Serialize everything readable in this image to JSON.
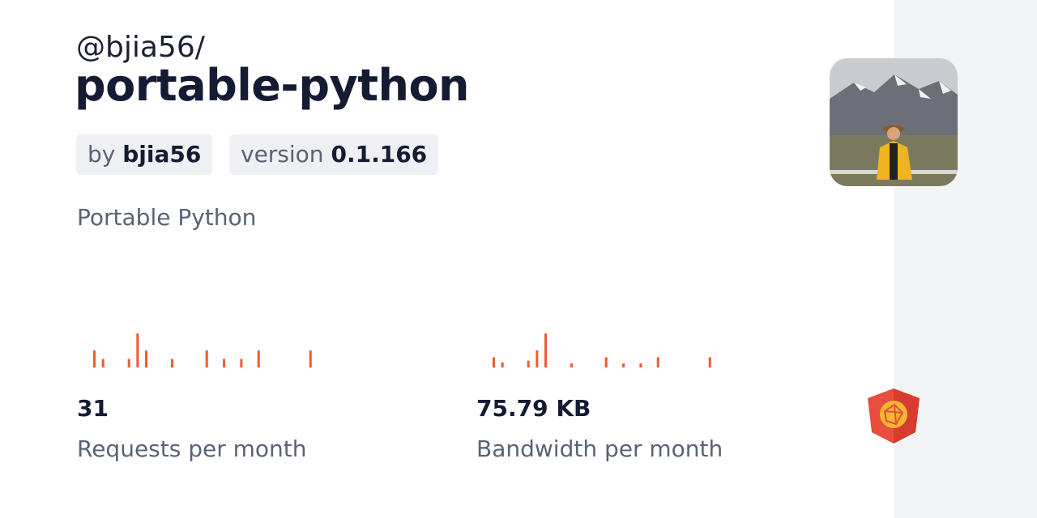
{
  "header": {
    "scope": "@bjia56/",
    "name": "portable-python"
  },
  "badges": {
    "by_label": "by",
    "author": "bjia56",
    "version_label": "version",
    "version": "0.1.166"
  },
  "description": "Portable Python",
  "sparkline_color": "#f05a30",
  "stats": [
    {
      "value": "31",
      "label": "Requests per month",
      "sparkline": [
        2,
        1,
        0,
        0,
        1,
        4,
        2,
        0,
        0,
        1,
        0,
        0,
        0,
        2,
        0,
        1,
        0,
        1,
        0,
        2,
        0,
        0,
        0,
        0,
        0,
        2,
        0,
        0,
        0,
        0
      ]
    },
    {
      "value": "75.79 KB",
      "label": "Bandwidth per month",
      "sparkline": [
        3,
        1.5,
        0,
        0,
        2,
        5,
        10,
        0,
        0,
        1.2,
        0,
        0,
        0,
        3,
        0,
        1.2,
        0,
        1.2,
        0,
        3,
        0,
        0,
        0,
        0,
        0,
        3,
        0,
        0,
        0,
        0
      ]
    }
  ]
}
